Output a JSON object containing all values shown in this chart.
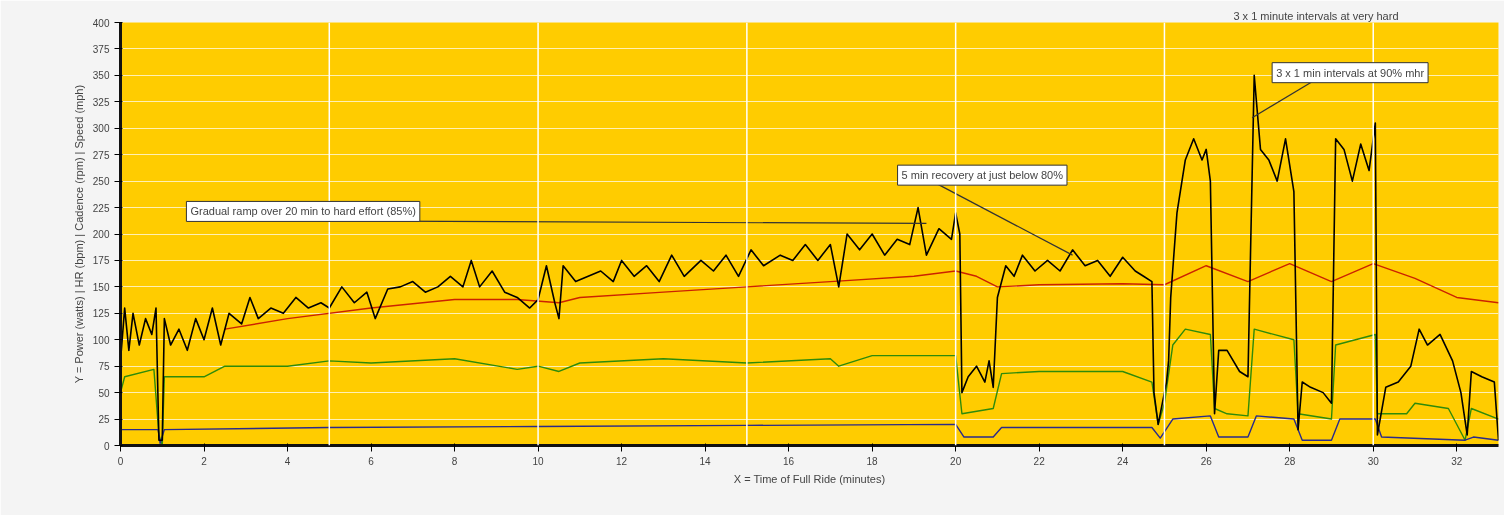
{
  "chart_data": {
    "type": "line",
    "xlabel": "X = Time of Full Ride (minutes)",
    "ylabel": "Y = Power (watts) | HR (bpm) | Cadence (rpm) | Speed (mph)",
    "xlim": [
      0,
      33
    ],
    "xticks": [
      0,
      2,
      4,
      6,
      8,
      10,
      12,
      14,
      16,
      18,
      20,
      22,
      24,
      26,
      28,
      30,
      32
    ],
    "ylim": [
      0,
      400
    ],
    "yticks": [
      0,
      25,
      50,
      75,
      100,
      125,
      150,
      175,
      200,
      225,
      250,
      275,
      300,
      325,
      350,
      375,
      400
    ],
    "grid": "y",
    "marker": "none",
    "line_style": "solid",
    "ref_lines": [
      {
        "axis": "x",
        "value": 5,
        "label": null,
        "color": "#ffffff"
      },
      {
        "axis": "x",
        "value": 10,
        "label": null,
        "color": "#ffffff"
      },
      {
        "axis": "x",
        "value": 15,
        "label": null,
        "color": "#ffffff"
      },
      {
        "axis": "x",
        "value": 20,
        "label": null,
        "color": "#ffffff"
      },
      {
        "axis": "x",
        "value": 25,
        "label": null,
        "color": "#ffffff"
      },
      {
        "axis": "x",
        "value": 30,
        "label": null,
        "color": "#ffffff"
      }
    ],
    "annotations": [
      {
        "text": "Gradual ramp over 20 min to hard effort (85%)",
        "x": 19.3,
        "y": 210
      },
      {
        "text": "5 min recovery at just below 80%",
        "x": 22.8,
        "y": 180
      },
      {
        "text": "3 x 1 min intervals at 90% mhr",
        "x": 27.1,
        "y": 310
      },
      "3 x 1 minute intervals at very hard"
    ],
    "series": [
      {
        "color": "#cc2200",
        "x": [
          2.5,
          4,
          6,
          8,
          9.5,
          10.5,
          11,
          13,
          15,
          17,
          19,
          20,
          20.5,
          21,
          22,
          24,
          25,
          26,
          27,
          28,
          29,
          30,
          31,
          32,
          33
        ],
        "values": [
          110,
          120,
          130,
          138,
          138,
          135,
          140,
          145,
          150,
          155,
          160,
          165,
          160,
          150,
          152,
          153,
          152,
          170,
          155,
          172,
          155,
          172,
          158,
          140,
          135
        ]
      },
      {
        "color": "#2e8b0a",
        "x": [
          0,
          0.1,
          0.8,
          0.92,
          1.0,
          1.05,
          2,
          2.5,
          4,
          5,
          6,
          8,
          9.5,
          10,
          10.5,
          11,
          13,
          15,
          17,
          17.2,
          18,
          20,
          20.15,
          20.9,
          21.1,
          22,
          24,
          24.7,
          24.85,
          25.0,
          25.2,
          25.5,
          26.1,
          26.2,
          26.5,
          27.0,
          27.15,
          28.1,
          28.2,
          29.0,
          29.1,
          30.05,
          30.1,
          30.8,
          31.0,
          31.8,
          32.2,
          32.35,
          33
        ],
        "values": [
          50,
          65,
          72,
          10,
          0,
          65,
          65,
          75,
          75,
          80,
          78,
          82,
          72,
          75,
          70,
          78,
          82,
          78,
          82,
          75,
          85,
          85,
          30,
          35,
          68,
          70,
          70,
          60,
          20,
          40,
          95,
          110,
          105,
          35,
          30,
          28,
          110,
          100,
          30,
          25,
          95,
          105,
          30,
          30,
          40,
          35,
          5,
          35,
          25
        ]
      },
      {
        "color": "#2a2a8a",
        "x": [
          0,
          0.9,
          0.95,
          1.05,
          5,
          10,
          15,
          20,
          20.2,
          20.9,
          21.1,
          24.7,
          24.9,
          25.2,
          26.1,
          26.3,
          27.0,
          27.2,
          28.1,
          28.3,
          29.0,
          29.2,
          30.05,
          30.2,
          32.2,
          32.4,
          33
        ],
        "values": [
          15,
          15,
          2,
          15,
          17,
          18,
          19,
          20,
          8,
          8,
          17,
          17,
          7,
          25,
          28,
          8,
          8,
          28,
          25,
          5,
          5,
          25,
          25,
          8,
          5,
          8,
          5
        ]
      },
      {
        "color": "#000000",
        "x": [
          0,
          0.1,
          0.2,
          0.3,
          0.45,
          0.6,
          0.75,
          0.85,
          0.92,
          1.0,
          1.05,
          1.2,
          1.4,
          1.6,
          1.8,
          2.0,
          2.2,
          2.4,
          2.6,
          2.9,
          3.1,
          3.3,
          3.6,
          3.9,
          4.2,
          4.5,
          4.8,
          5.0,
          5.3,
          5.6,
          5.9,
          6.1,
          6.4,
          6.7,
          7.0,
          7.3,
          7.6,
          7.9,
          8.2,
          8.4,
          8.6,
          8.9,
          9.2,
          9.5,
          9.8,
          10.0,
          10.2,
          10.4,
          10.5,
          10.6,
          10.9,
          11.2,
          11.5,
          11.8,
          12.0,
          12.3,
          12.6,
          12.9,
          13.2,
          13.5,
          13.9,
          14.2,
          14.5,
          14.8,
          15.1,
          15.4,
          15.8,
          16.1,
          16.4,
          16.7,
          17.0,
          17.2,
          17.4,
          17.7,
          18.0,
          18.3,
          18.6,
          18.9,
          19.1,
          19.3,
          19.6,
          19.9,
          20.0,
          20.1,
          20.15,
          20.3,
          20.5,
          20.7,
          20.8,
          20.9,
          21.0,
          21.2,
          21.4,
          21.6,
          21.9,
          22.2,
          22.5,
          22.8,
          23.1,
          23.4,
          23.7,
          24.0,
          24.3,
          24.5,
          24.7,
          24.75,
          24.85,
          24.95,
          25.05,
          25.1,
          25.15,
          25.3,
          25.5,
          25.7,
          25.9,
          26.0,
          26.1,
          26.2,
          26.3,
          26.5,
          26.8,
          27.0,
          27.15,
          27.3,
          27.5,
          27.7,
          27.9,
          28.1,
          28.2,
          28.3,
          28.5,
          28.8,
          29.0,
          29.1,
          29.3,
          29.5,
          29.7,
          29.9,
          30.05,
          30.1,
          30.3,
          30.6,
          30.9,
          31.1,
          31.3,
          31.6,
          31.9,
          32.1,
          32.25,
          32.35,
          32.6,
          32.9,
          33.0
        ],
        "values": [
          80,
          130,
          90,
          125,
          95,
          120,
          105,
          130,
          5,
          5,
          120,
          95,
          110,
          90,
          120,
          100,
          130,
          95,
          125,
          115,
          140,
          120,
          130,
          125,
          140,
          130,
          135,
          130,
          150,
          135,
          145,
          120,
          148,
          150,
          155,
          145,
          150,
          160,
          150,
          175,
          150,
          165,
          145,
          140,
          130,
          138,
          170,
          135,
          120,
          170,
          155,
          160,
          165,
          155,
          175,
          160,
          170,
          155,
          180,
          160,
          175,
          165,
          180,
          160,
          185,
          170,
          180,
          175,
          190,
          175,
          190,
          150,
          200,
          185,
          200,
          180,
          195,
          190,
          225,
          180,
          205,
          195,
          220,
          200,
          50,
          65,
          75,
          60,
          80,
          55,
          140,
          170,
          160,
          180,
          165,
          175,
          165,
          185,
          170,
          175,
          160,
          178,
          165,
          160,
          155,
          50,
          20,
          40,
          60,
          80,
          140,
          220,
          270,
          290,
          270,
          280,
          250,
          30,
          90,
          90,
          70,
          65,
          350,
          280,
          270,
          250,
          290,
          240,
          15,
          60,
          55,
          50,
          40,
          290,
          280,
          250,
          285,
          260,
          305,
          10,
          55,
          60,
          75,
          110,
          95,
          105,
          80,
          50,
          10,
          70,
          65,
          60,
          5
        ]
      }
    ]
  }
}
